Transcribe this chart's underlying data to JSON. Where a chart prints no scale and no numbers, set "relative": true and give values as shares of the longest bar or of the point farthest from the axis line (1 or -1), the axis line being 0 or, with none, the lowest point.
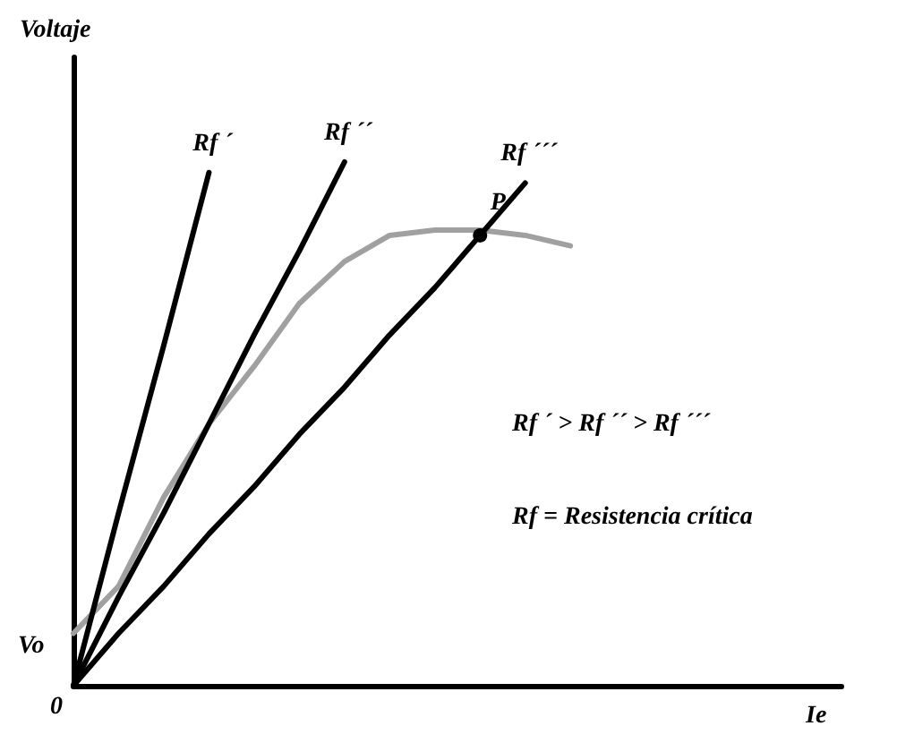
{
  "chart_data": {
    "type": "line",
    "relative": true,
    "xlabel": "Ie",
    "ylabel": "Voltaje",
    "grid": false,
    "legend": false,
    "marker": "none",
    "line_style": "solid",
    "categories": [
      null,
      null,
      null,
      null,
      null,
      null,
      null,
      null,
      null,
      null,
      null,
      null,
      null,
      null,
      null,
      null,
      null,
      null
    ],
    "series": [
      {
        "name": "Rf ´",
        "color": "#000000",
        "values": [
          0,
          0.33,
          0.65,
          0.98,
          null,
          null,
          null,
          null,
          null,
          null,
          null,
          null,
          null,
          null,
          null,
          null,
          null,
          null
        ]
      },
      {
        "name": "Rf ´´",
        "color": "#000000",
        "values": [
          0,
          0.17,
          0.33,
          0.5,
          0.67,
          0.83,
          1.0,
          null,
          null,
          null,
          null,
          null,
          null,
          null,
          null,
          null,
          null,
          null
        ]
      },
      {
        "name": "Rf ´´´",
        "color": "#000000",
        "values": [
          0,
          0.1,
          0.19,
          0.29,
          0.38,
          0.48,
          0.57,
          0.67,
          0.76,
          0.86,
          0.96,
          null,
          null,
          null,
          null,
          null,
          null,
          null
        ]
      },
      {
        "color": "#a0a0a0",
        "values": [
          0.1,
          0.19,
          0.36,
          0.5,
          0.61,
          0.73,
          0.81,
          0.86,
          0.87,
          0.87,
          0.86,
          0.84,
          null,
          null,
          null,
          null,
          null,
          null
        ]
      },
      {
        "name": "P",
        "marker": "circle",
        "color": "#000000",
        "values": [
          null,
          null,
          null,
          null,
          null,
          null,
          null,
          null,
          null,
          0.86,
          null,
          null,
          null,
          null,
          null,
          null,
          null,
          null
        ]
      }
    ],
    "annotations": [
      "Vo",
      "0",
      "Rf ´ > Rf ´´ > Rf ´´´",
      "Rf = Resistencia crítica"
    ]
  }
}
